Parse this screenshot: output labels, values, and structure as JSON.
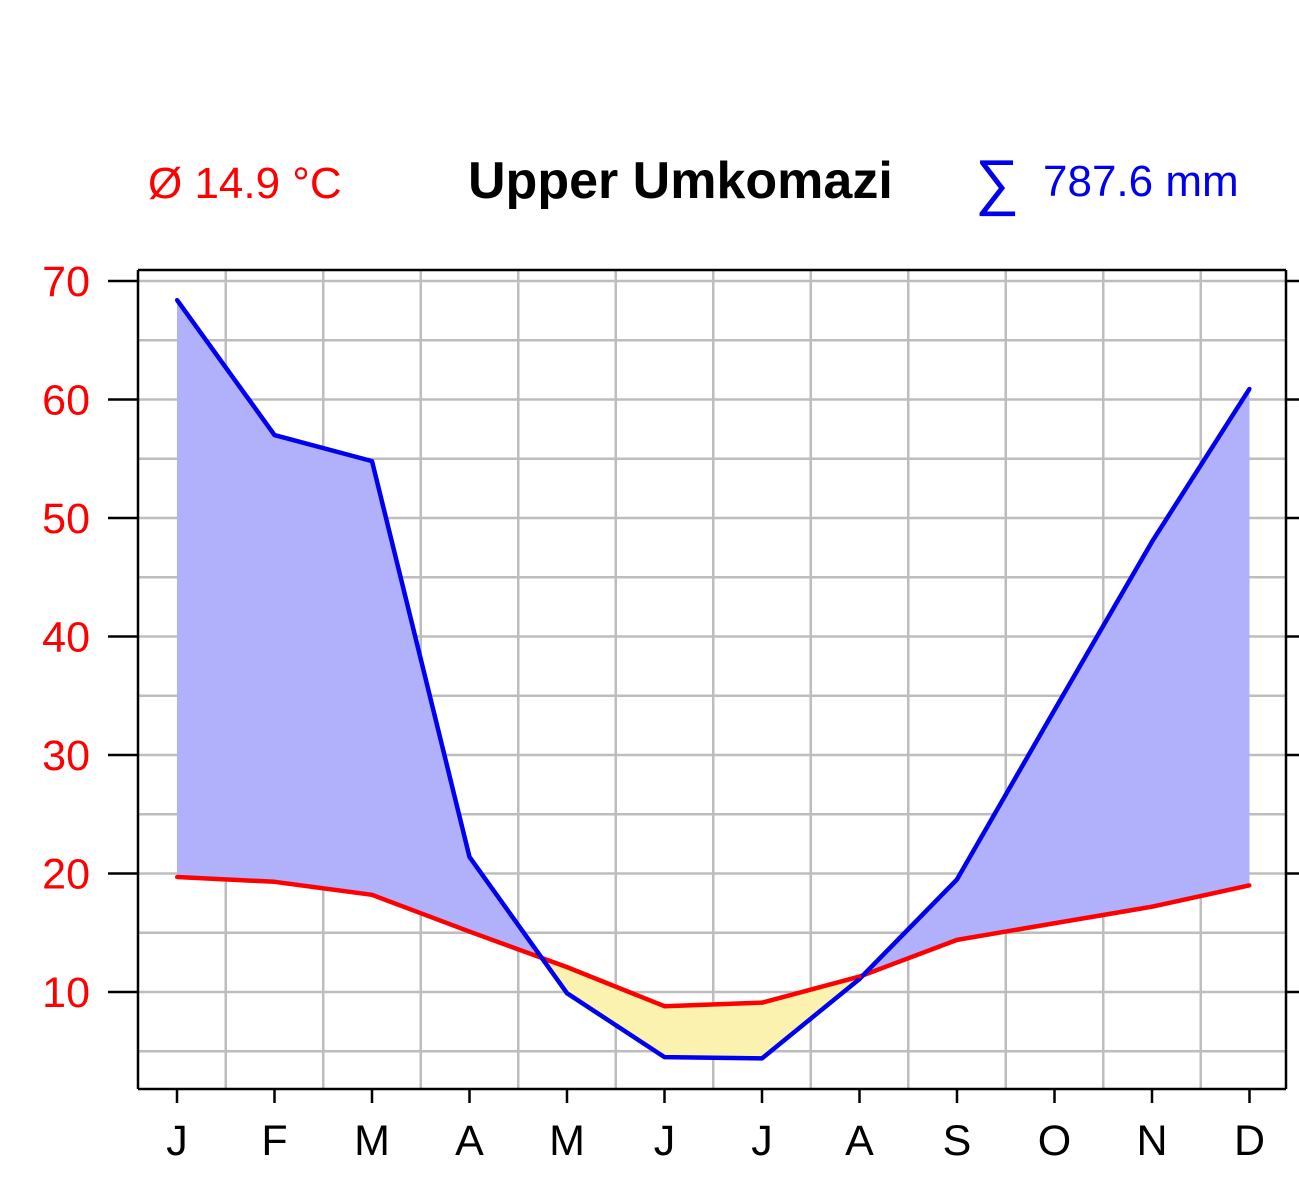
{
  "chart_data": {
    "type": "line",
    "title": "Upper Umkomazi",
    "temp_label": "Ø 14.9 °C",
    "precip_sum_symbol": "∑",
    "precip_label": "787.6 mm",
    "categories": [
      "J",
      "F",
      "M",
      "A",
      "M",
      "J",
      "J",
      "A",
      "S",
      "O",
      "N",
      "D"
    ],
    "series": [
      {
        "key": "precipitation",
        "color": "#0000ee",
        "values": [
          68.4,
          57.0,
          54.8,
          21.4,
          9.9,
          4.5,
          4.4,
          11.1,
          19.5,
          33.8,
          48.0,
          60.9
        ]
      },
      {
        "key": "temperature",
        "color": "#ff0000",
        "values": [
          19.7,
          19.3,
          18.2,
          15.1,
          12.1,
          8.8,
          9.1,
          11.3,
          14.4,
          15.8,
          17.2,
          19.0
        ]
      }
    ],
    "ylim": [
      2,
      71
    ],
    "yticks": [
      "10",
      "20",
      "30",
      "40",
      "50",
      "60",
      "70"
    ],
    "humid_fill": "#b0b0fb",
    "arid_fill": "#fbf2b0",
    "grid": true
  }
}
